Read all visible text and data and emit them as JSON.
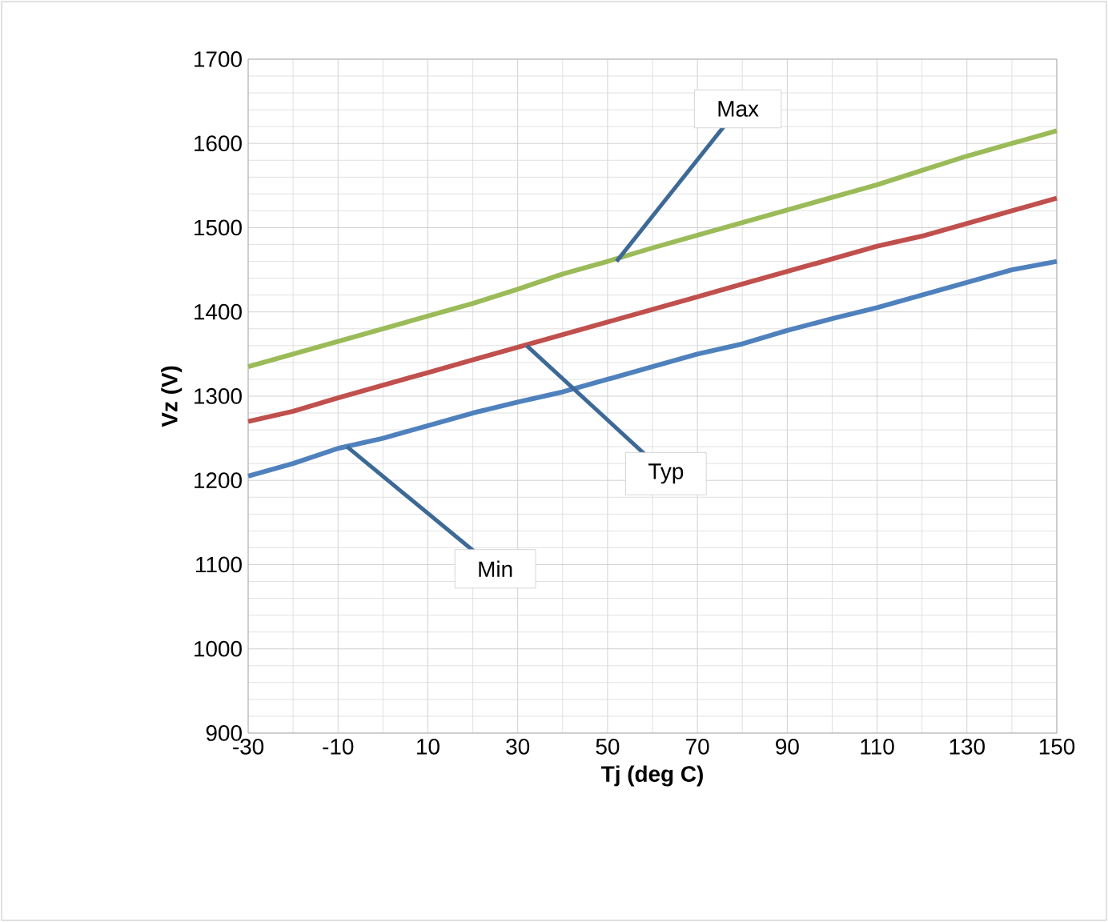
{
  "chart_data": {
    "type": "line",
    "xlabel": "Tj (deg C)",
    "ylabel": "Vz (V)",
    "x": [
      -30,
      -20,
      -10,
      0,
      10,
      20,
      30,
      40,
      50,
      60,
      70,
      80,
      90,
      100,
      110,
      120,
      130,
      140,
      150
    ],
    "series": [
      {
        "color": "#9bbb59",
        "values": [
          1335,
          1350,
          1365,
          1380,
          1395,
          1410,
          1427,
          1445,
          1460,
          1476,
          1491,
          1506,
          1521,
          1536,
          1551,
          1568,
          1585,
          1600,
          1615
        ]
      },
      {
        "color": "#c0504d",
        "values": [
          1270,
          1282,
          1298,
          1313,
          1328,
          1343,
          1358,
          1373,
          1388,
          1403,
          1418,
          1433,
          1448,
          1463,
          1478,
          1490,
          1505,
          1520,
          1535
        ]
      },
      {
        "color": "#4f81bd",
        "values": [
          1205,
          1220,
          1238,
          1250,
          1265,
          1280,
          1293,
          1305,
          1320,
          1335,
          1350,
          1362,
          1378,
          1392,
          1405,
          1420,
          1435,
          1450,
          1460
        ]
      }
    ],
    "annotations": [
      {
        "text": "Max",
        "x": 52,
        "y": 1460
      },
      {
        "text": "Typ",
        "x": 32,
        "y": 1360
      },
      {
        "text": "Min",
        "x": -8,
        "y": 1240
      }
    ],
    "xlim": [
      -30,
      150
    ],
    "ylim": [
      900,
      1700
    ],
    "xticks": [
      -30,
      -10,
      10,
      30,
      50,
      70,
      90,
      110,
      130,
      150
    ],
    "yticks": [
      900,
      1000,
      1100,
      1200,
      1300,
      1400,
      1500,
      1600,
      1700
    ],
    "grid": true,
    "marker": "none",
    "line_style": "solid"
  }
}
